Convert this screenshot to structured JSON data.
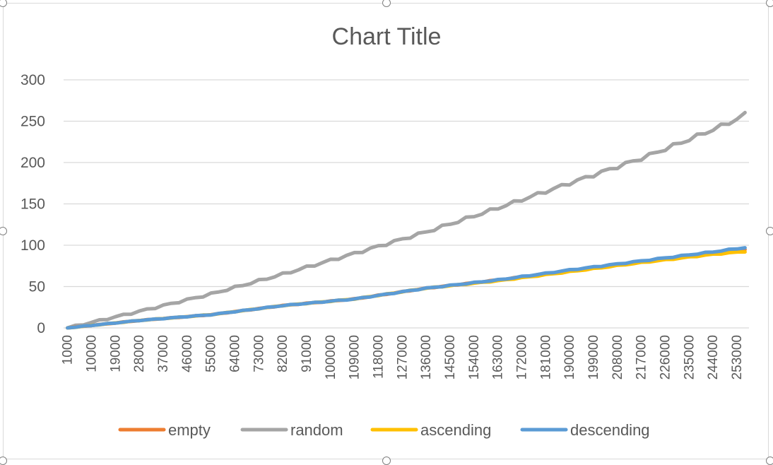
{
  "chart_data": {
    "type": "line",
    "title": "Chart Title",
    "xlabel": "",
    "ylabel": "",
    "ylim": [
      0,
      300
    ],
    "y_ticks": [
      "0",
      "50",
      "100",
      "150",
      "200",
      "250",
      "300"
    ],
    "x_tick_labels": [
      "1000",
      "10000",
      "19000",
      "28000",
      "37000",
      "46000",
      "55000",
      "64000",
      "73000",
      "82000",
      "91000",
      "100000",
      "109000",
      "118000",
      "127000",
      "136000",
      "145000",
      "154000",
      "163000",
      "172000",
      "181000",
      "190000",
      "199000",
      "208000",
      "217000",
      "226000",
      "235000",
      "244000",
      "253000"
    ],
    "x_start": 1000,
    "x_step": 3000,
    "x_count": 86,
    "grid": true,
    "legend_position": "bottom",
    "series": [
      {
        "name": "empty",
        "color": "#ED7D31",
        "anchors": [
          [
            1000,
            0
          ],
          [
            28000,
            9
          ],
          [
            55000,
            16
          ],
          [
            82000,
            27
          ],
          [
            109000,
            35
          ],
          [
            136000,
            48
          ],
          [
            163000,
            58
          ],
          [
            190000,
            69
          ],
          [
            217000,
            80
          ],
          [
            244000,
            90
          ],
          [
            258000,
            95
          ]
        ]
      },
      {
        "name": "random",
        "color": "#A5A5A5",
        "anchors": [
          [
            1000,
            0
          ],
          [
            28000,
            20
          ],
          [
            55000,
            41
          ],
          [
            82000,
            65
          ],
          [
            109000,
            90
          ],
          [
            136000,
            116
          ],
          [
            163000,
            145
          ],
          [
            190000,
            175
          ],
          [
            217000,
            205
          ],
          [
            235000,
            228
          ],
          [
            250000,
            248
          ],
          [
            256000,
            258
          ]
        ]
      },
      {
        "name": "ascending",
        "color": "#FFC000",
        "anchors": [
          [
            1000,
            0
          ],
          [
            28000,
            9
          ],
          [
            55000,
            16
          ],
          [
            82000,
            27
          ],
          [
            109000,
            35
          ],
          [
            136000,
            48
          ],
          [
            163000,
            57
          ],
          [
            190000,
            68
          ],
          [
            217000,
            79
          ],
          [
            244000,
            89
          ],
          [
            258000,
            93
          ]
        ]
      },
      {
        "name": "descending",
        "color": "#5B9BD5",
        "anchors": [
          [
            1000,
            0
          ],
          [
            28000,
            9
          ],
          [
            55000,
            16
          ],
          [
            82000,
            27
          ],
          [
            109000,
            35
          ],
          [
            136000,
            48
          ],
          [
            163000,
            58
          ],
          [
            190000,
            70
          ],
          [
            217000,
            81
          ],
          [
            244000,
            92
          ],
          [
            258000,
            98
          ]
        ]
      }
    ]
  }
}
